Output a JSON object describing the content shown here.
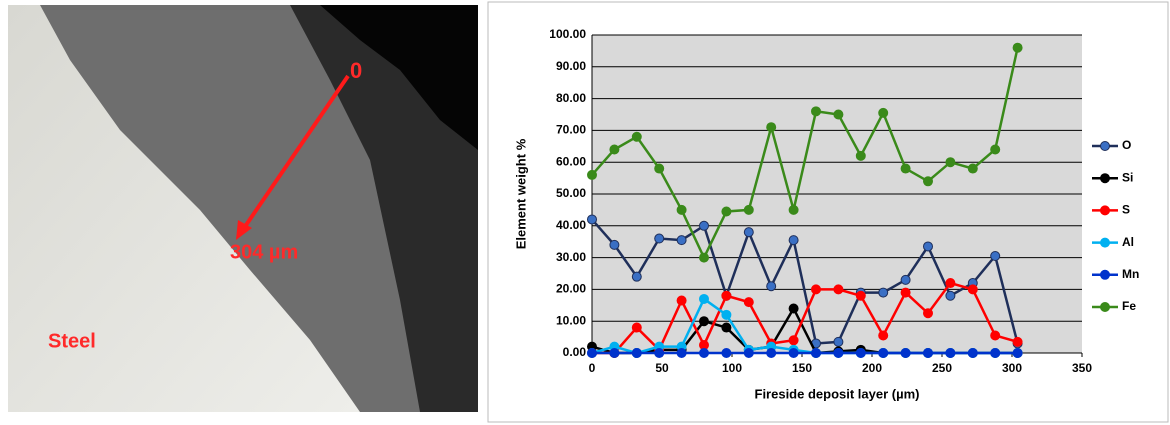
{
  "image": {
    "labels": [
      "0",
      "304 µm",
      "Steel"
    ]
  },
  "chart_data": {
    "type": "line",
    "ylabel": "Element weight %",
    "xlabel": "Fireside deposit layer (µm)",
    "x": [
      0,
      16,
      32,
      48,
      64,
      80,
      96,
      112,
      128,
      144,
      160,
      176,
      192,
      208,
      224,
      240,
      256,
      272,
      288,
      304
    ],
    "xlim": [
      0,
      350
    ],
    "xticks": [
      0,
      50,
      100,
      150,
      200,
      250,
      300,
      350
    ],
    "ylim": [
      0,
      100
    ],
    "yticks": [
      {
        "value": 0,
        "label": "0.00"
      },
      {
        "value": 10,
        "label": "10.00"
      },
      {
        "value": 20,
        "label": "20.00"
      },
      {
        "value": 30,
        "label": "30.00"
      },
      {
        "value": 40,
        "label": "40.00"
      },
      {
        "value": 50,
        "label": "50.00"
      },
      {
        "value": 60,
        "label": "60.00"
      },
      {
        "value": 70,
        "label": "70.00"
      },
      {
        "value": 80,
        "label": "80.00"
      },
      {
        "value": 90,
        "label": "90.00"
      },
      {
        "value": 100,
        "label": "100.00"
      }
    ],
    "grid": true,
    "legend": "right",
    "series": [
      {
        "name": "O",
        "color": "#1f2f5a",
        "marker": "#3a6fc4",
        "values": [
          42,
          34,
          24,
          36,
          35.5,
          40,
          18,
          38,
          21,
          35.5,
          3,
          3.5,
          19,
          19,
          23,
          33.5,
          18,
          22,
          30.5,
          3
        ]
      },
      {
        "name": "Si",
        "color": "#000000",
        "marker": "#000000",
        "values": [
          2,
          0,
          0,
          1,
          1,
          10,
          8,
          1,
          2,
          14,
          0,
          0.5,
          1,
          0,
          0,
          0,
          0,
          0,
          0,
          0
        ]
      },
      {
        "name": "S",
        "color": "#ff0000",
        "marker": "#ff0000",
        "values": [
          0,
          0,
          8,
          1,
          16.5,
          2.5,
          18,
          16,
          3,
          4,
          20,
          20,
          18,
          5.5,
          19,
          12.5,
          22,
          20,
          5.5,
          3.5
        ]
      },
      {
        "name": "Al",
        "color": "#00b0f0",
        "marker": "#00b0f0",
        "values": [
          0,
          2,
          0,
          2,
          2,
          17,
          12,
          1,
          2,
          1,
          0,
          0,
          0,
          0,
          0,
          0,
          0,
          0,
          0,
          0
        ]
      },
      {
        "name": "Mn",
        "color": "#0033cc",
        "marker": "#0033cc",
        "values": [
          0,
          0,
          0,
          0,
          0,
          0,
          0,
          0,
          0,
          0,
          0,
          0,
          0,
          0,
          0,
          0,
          0,
          0,
          0,
          0
        ]
      },
      {
        "name": "Fe",
        "color": "#3a8a1a",
        "marker": "#3a8a1a",
        "values": [
          56,
          64,
          68,
          58,
          45,
          30,
          44.5,
          45,
          71,
          45,
          76,
          75,
          62,
          75.5,
          58,
          54,
          60,
          58,
          64,
          96
        ]
      }
    ]
  }
}
